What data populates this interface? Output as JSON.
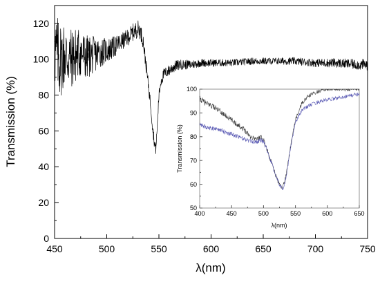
{
  "chart_data": [
    {
      "id": "main",
      "type": "line",
      "xlabel": "λ(nm)",
      "ylabel": "Transmission (%)",
      "xlim": [
        450,
        750
      ],
      "ylim": [
        0,
        130
      ],
      "x_ticks": [
        450,
        500,
        550,
        600,
        650,
        700,
        750
      ],
      "y_ticks": [
        0,
        20,
        40,
        60,
        80,
        100,
        120
      ],
      "line_color": "#000000",
      "series": [
        {
          "x": [
            450,
            455,
            460,
            465,
            470,
            475,
            480,
            485,
            490,
            495,
            500,
            505,
            510,
            515,
            520,
            525,
            530,
            532,
            535,
            538,
            540,
            542,
            544,
            546,
            547,
            548,
            550,
            552,
            555,
            558,
            560,
            565,
            570,
            580,
            590,
            600,
            620,
            640,
            660,
            680,
            700,
            720,
            740,
            750
          ],
          "y": [
            105,
            100,
            103,
            100,
            102,
            104,
            101,
            102,
            103,
            104,
            105,
            106,
            108,
            110,
            112,
            115,
            117,
            116,
            110,
            95,
            85,
            75,
            62,
            52,
            50,
            58,
            80,
            88,
            92,
            93,
            94,
            96,
            97,
            97,
            98,
            98,
            98,
            99,
            99,
            99,
            98,
            98,
            97,
            97
          ],
          "noise": [
            14,
            14,
            12,
            11,
            10,
            9,
            8,
            7,
            6,
            5,
            4.5,
            4,
            3.5,
            3,
            3,
            3,
            3,
            3,
            2.5,
            2.5,
            2,
            2,
            2,
            2,
            2,
            2,
            2,
            2,
            2,
            2,
            2,
            2,
            1.8,
            1.6,
            1.4,
            1.3,
            1.2,
            1.2,
            1.2,
            1.3,
            1.4,
            1.6,
            1.8,
            2
          ]
        }
      ]
    },
    {
      "id": "inset",
      "type": "line",
      "xlabel": "λ(nm)",
      "ylabel": "Transmission (%)",
      "xlim": [
        400,
        650
      ],
      "ylim": [
        50,
        100
      ],
      "x_ticks": [
        400,
        450,
        500,
        550,
        600,
        650
      ],
      "y_ticks": [
        50,
        60,
        70,
        80,
        90,
        100
      ],
      "series": [
        {
          "color": "#3c3c3c",
          "x": [
            400,
            410,
            420,
            430,
            440,
            450,
            460,
            470,
            480,
            490,
            495,
            500,
            505,
            510,
            515,
            520,
            525,
            528,
            530,
            533,
            536,
            540,
            545,
            550,
            560,
            570,
            580,
            590,
            600,
            610,
            620,
            630,
            640,
            650
          ],
          "y": [
            96,
            94,
            93,
            91,
            89,
            87,
            85,
            83,
            80,
            79,
            80,
            79,
            75,
            71,
            67,
            63,
            60,
            59,
            59,
            61,
            65,
            72,
            80,
            87,
            94,
            97,
            98.5,
            99.5,
            100,
            100,
            100,
            100,
            100,
            100
          ],
          "noise": [
            0.8,
            0.8,
            0.8,
            0.8,
            0.7,
            0.7,
            0.7,
            0.7,
            0.7,
            0.6,
            0.6,
            0.6,
            0.6,
            0.6,
            0.5,
            0.5,
            0.5,
            0.5,
            0.5,
            0.5,
            0.5,
            0.5,
            0.5,
            0.5,
            0.5,
            0.5,
            0.5,
            0.5,
            0.5,
            0.5,
            0.5,
            0.5,
            0.5,
            0.5
          ]
        },
        {
          "color": "#5a5ab4",
          "x": [
            400,
            410,
            420,
            430,
            440,
            450,
            460,
            470,
            480,
            490,
            495,
            500,
            505,
            510,
            515,
            520,
            525,
            528,
            530,
            533,
            536,
            540,
            545,
            550,
            560,
            570,
            580,
            590,
            600,
            610,
            620,
            630,
            640,
            650
          ],
          "y": [
            85,
            84,
            83.5,
            83,
            82,
            81,
            80,
            79,
            78,
            78,
            78.5,
            78,
            75,
            71,
            67,
            63,
            60,
            58.5,
            58,
            60,
            64,
            71,
            79,
            86,
            91,
            93,
            94,
            95,
            95.5,
            96,
            96.5,
            97,
            97.5,
            98
          ],
          "noise": [
            0.6,
            0.6,
            0.6,
            0.6,
            0.6,
            0.6,
            0.6,
            0.6,
            0.6,
            0.6,
            0.6,
            0.6,
            0.6,
            0.6,
            0.5,
            0.5,
            0.5,
            0.5,
            0.5,
            0.5,
            0.5,
            0.5,
            0.5,
            0.5,
            0.5,
            0.5,
            0.5,
            0.5,
            0.5,
            0.5,
            0.5,
            0.5,
            0.5,
            0.5
          ]
        }
      ]
    }
  ]
}
